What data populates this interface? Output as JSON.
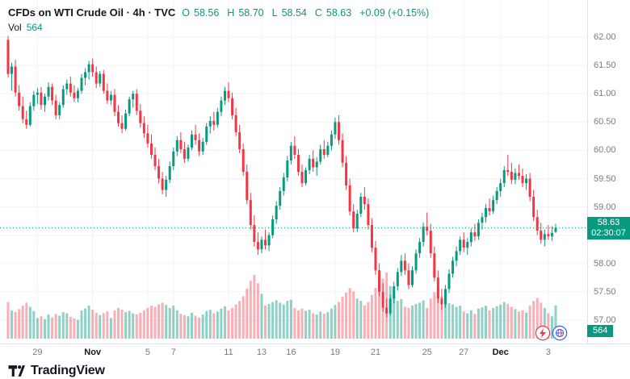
{
  "header": {
    "symbol_title": "CFDs on WTI Crude Oil · 4h · TVC",
    "ohlc": {
      "o_label": "O",
      "o": "58.56",
      "h_label": "H",
      "h": "58.70",
      "l_label": "L",
      "l": "58.54",
      "c_label": "C",
      "c": "58.63",
      "change": "+0.09 (+0.15%)"
    },
    "vol_label": "Vol",
    "vol_value": "564"
  },
  "price_axis": {
    "ticks": [
      {
        "v": 62.0,
        "l": "62.00"
      },
      {
        "v": 61.5,
        "l": "61.50"
      },
      {
        "v": 61.0,
        "l": "61.00"
      },
      {
        "v": 60.5,
        "l": "60.50"
      },
      {
        "v": 60.0,
        "l": "60.00"
      },
      {
        "v": 59.5,
        "l": "59.50"
      },
      {
        "v": 59.0,
        "l": "59.00"
      },
      {
        "v": 58.5,
        "l": ""
      },
      {
        "v": 58.0,
        "l": "58.00"
      },
      {
        "v": 57.5,
        "l": "57.50"
      },
      {
        "v": 57.0,
        "l": "57.00"
      }
    ],
    "last_price_badge": {
      "price": "58.63",
      "countdown": "02:30:07"
    },
    "volume_badge": "564"
  },
  "time_axis": {
    "labels": [
      {
        "i": 8,
        "t": "29"
      },
      {
        "i": 23,
        "t": "Nov",
        "month": true
      },
      {
        "i": 38,
        "t": "5"
      },
      {
        "i": 45,
        "t": "7"
      },
      {
        "i": 60,
        "t": "11"
      },
      {
        "i": 69,
        "t": "13"
      },
      {
        "i": 77,
        "t": "16"
      },
      {
        "i": 89,
        "t": "19"
      },
      {
        "i": 100,
        "t": "21"
      },
      {
        "i": 114,
        "t": "25"
      },
      {
        "i": 124,
        "t": "27"
      },
      {
        "i": 134,
        "t": "Dec",
        "month": true
      },
      {
        "i": 147,
        "t": "3"
      }
    ]
  },
  "footer": {
    "brand": "TradingView"
  },
  "icons": {
    "bolt": "quick-trade",
    "globe": "community-reactions"
  },
  "colors": {
    "up": "#089981",
    "down": "#f23645",
    "vol_up": "rgba(8,153,129,0.45)",
    "vol_down": "rgba(242,54,69,0.40)",
    "grid": "#f0f3fa",
    "axis_text": "#787b86",
    "title_text": "#131722",
    "badge_bg": "#089981"
  },
  "chart_data": {
    "type": "candlestick",
    "title": "CFDs on WTI Crude Oil",
    "interval": "4h",
    "exchange": "TVC",
    "last": {
      "open": 58.56,
      "high": 58.7,
      "low": 58.54,
      "close": 58.63,
      "volume": 564,
      "change": "+0.09 (+0.15%)"
    },
    "ylim": [
      56.8,
      62.3
    ],
    "volume_max": 1120,
    "x_range_labels": [
      "29",
      "Nov",
      "5",
      "7",
      "11",
      "13",
      "16",
      "19",
      "21",
      "25",
      "27",
      "Dec",
      "3"
    ],
    "candles_format": [
      "open",
      "high",
      "low",
      "close",
      "volume"
    ],
    "candles": [
      [
        61.95,
        62.02,
        61.28,
        61.35,
        620
      ],
      [
        61.35,
        61.55,
        61.05,
        61.48,
        480
      ],
      [
        61.48,
        61.6,
        60.95,
        61.02,
        450
      ],
      [
        61.02,
        61.15,
        60.7,
        60.78,
        500
      ],
      [
        60.78,
        60.95,
        60.48,
        60.55,
        560
      ],
      [
        60.55,
        60.7,
        60.38,
        60.45,
        610
      ],
      [
        60.45,
        60.85,
        60.42,
        60.78,
        540
      ],
      [
        60.78,
        61.05,
        60.7,
        60.98,
        470
      ],
      [
        60.98,
        61.1,
        60.82,
        61.02,
        350
      ],
      [
        61.02,
        61.12,
        60.72,
        60.8,
        380
      ],
      [
        60.8,
        61.0,
        60.68,
        60.95,
        330
      ],
      [
        60.95,
        61.2,
        60.88,
        61.12,
        410
      ],
      [
        61.12,
        61.18,
        60.8,
        60.88,
        360
      ],
      [
        60.88,
        60.98,
        60.55,
        60.62,
        420
      ],
      [
        60.62,
        60.85,
        60.55,
        60.8,
        390
      ],
      [
        60.8,
        61.15,
        60.75,
        61.08,
        450
      ],
      [
        61.08,
        61.25,
        60.98,
        61.18,
        430
      ],
      [
        61.18,
        61.3,
        60.95,
        61.02,
        370
      ],
      [
        61.02,
        61.15,
        60.85,
        60.92,
        340
      ],
      [
        60.92,
        61.1,
        60.85,
        61.05,
        320
      ],
      [
        61.05,
        61.35,
        61.0,
        61.28,
        480
      ],
      [
        61.28,
        61.45,
        61.15,
        61.38,
        510
      ],
      [
        61.38,
        61.58,
        61.25,
        61.52,
        560
      ],
      [
        61.52,
        61.62,
        61.3,
        61.38,
        490
      ],
      [
        61.38,
        61.48,
        61.1,
        61.18,
        440
      ],
      [
        61.18,
        61.4,
        61.12,
        61.35,
        400
      ],
      [
        61.35,
        61.42,
        61.0,
        61.05,
        430
      ],
      [
        61.05,
        61.18,
        60.82,
        60.88,
        460
      ],
      [
        60.88,
        61.05,
        60.8,
        60.98,
        350
      ],
      [
        60.98,
        61.08,
        60.6,
        60.68,
        480
      ],
      [
        60.68,
        60.8,
        60.42,
        60.48,
        520
      ],
      [
        60.48,
        60.62,
        60.3,
        60.38,
        490
      ],
      [
        60.38,
        60.72,
        60.35,
        60.65,
        450
      ],
      [
        60.65,
        60.95,
        60.6,
        60.9,
        470
      ],
      [
        60.9,
        61.05,
        60.75,
        61.0,
        430
      ],
      [
        61.0,
        61.08,
        60.62,
        60.7,
        410
      ],
      [
        60.7,
        60.82,
        60.4,
        60.48,
        440
      ],
      [
        60.48,
        60.6,
        60.22,
        60.3,
        480
      ],
      [
        60.3,
        60.45,
        60.05,
        60.12,
        520
      ],
      [
        60.12,
        60.28,
        59.85,
        59.92,
        560
      ],
      [
        59.92,
        60.05,
        59.65,
        59.72,
        540
      ],
      [
        59.72,
        59.85,
        59.42,
        59.5,
        580
      ],
      [
        59.5,
        59.62,
        59.22,
        59.3,
        610
      ],
      [
        59.3,
        59.55,
        59.18,
        59.48,
        570
      ],
      [
        59.48,
        59.8,
        59.42,
        59.72,
        520
      ],
      [
        59.72,
        60.05,
        59.65,
        59.98,
        560
      ],
      [
        59.98,
        60.25,
        59.9,
        60.18,
        480
      ],
      [
        60.18,
        60.32,
        59.95,
        60.02,
        420
      ],
      [
        60.02,
        60.15,
        59.78,
        59.85,
        400
      ],
      [
        59.85,
        60.1,
        59.8,
        60.05,
        380
      ],
      [
        60.05,
        60.35,
        60.0,
        60.28,
        440
      ],
      [
        60.28,
        60.45,
        60.1,
        60.18,
        390
      ],
      [
        60.18,
        60.3,
        59.9,
        59.98,
        360
      ],
      [
        59.98,
        60.22,
        59.92,
        60.15,
        410
      ],
      [
        60.15,
        60.48,
        60.1,
        60.42,
        470
      ],
      [
        60.42,
        60.6,
        60.3,
        60.52,
        490
      ],
      [
        60.52,
        60.68,
        60.35,
        60.45,
        430
      ],
      [
        60.45,
        60.75,
        60.4,
        60.68,
        460
      ],
      [
        60.68,
        60.95,
        60.6,
        60.88,
        510
      ],
      [
        60.88,
        61.12,
        60.8,
        61.05,
        550
      ],
      [
        61.05,
        61.2,
        60.85,
        60.92,
        480
      ],
      [
        60.92,
        61.02,
        60.55,
        60.62,
        520
      ],
      [
        60.62,
        60.75,
        60.25,
        60.32,
        580
      ],
      [
        60.32,
        60.45,
        59.95,
        60.02,
        640
      ],
      [
        60.02,
        60.12,
        59.55,
        59.62,
        720
      ],
      [
        59.62,
        59.75,
        59.05,
        59.12,
        850
      ],
      [
        59.12,
        59.25,
        58.6,
        58.68,
        980
      ],
      [
        58.68,
        58.85,
        58.3,
        58.38,
        1080
      ],
      [
        58.38,
        58.55,
        58.15,
        58.25,
        940
      ],
      [
        58.25,
        58.48,
        58.18,
        58.42,
        760
      ],
      [
        58.42,
        58.6,
        58.25,
        58.32,
        560
      ],
      [
        58.32,
        58.55,
        58.22,
        58.5,
        590
      ],
      [
        58.5,
        58.85,
        58.45,
        58.78,
        620
      ],
      [
        58.78,
        59.1,
        58.7,
        59.02,
        650
      ],
      [
        59.02,
        59.35,
        58.95,
        59.28,
        610
      ],
      [
        59.28,
        59.6,
        59.2,
        59.52,
        580
      ],
      [
        59.52,
        59.9,
        59.45,
        59.82,
        640
      ],
      [
        59.82,
        60.15,
        59.75,
        60.08,
        660
      ],
      [
        60.08,
        60.25,
        59.85,
        59.92,
        520
      ],
      [
        59.92,
        60.02,
        59.55,
        59.62,
        480
      ],
      [
        59.62,
        59.75,
        59.35,
        59.42,
        510
      ],
      [
        59.42,
        59.7,
        59.38,
        59.65,
        470
      ],
      [
        59.65,
        59.92,
        59.58,
        59.85,
        490
      ],
      [
        59.85,
        60.0,
        59.62,
        59.7,
        430
      ],
      [
        59.7,
        59.88,
        59.55,
        59.8,
        410
      ],
      [
        59.8,
        60.1,
        59.75,
        60.02,
        460
      ],
      [
        60.02,
        60.18,
        59.85,
        59.92,
        420
      ],
      [
        59.92,
        60.15,
        59.88,
        60.08,
        450
      ],
      [
        60.08,
        60.35,
        60.0,
        60.28,
        510
      ],
      [
        60.28,
        60.58,
        60.2,
        60.5,
        570
      ],
      [
        60.5,
        60.62,
        60.1,
        60.18,
        620
      ],
      [
        60.18,
        60.3,
        59.7,
        59.78,
        710
      ],
      [
        59.78,
        59.9,
        59.3,
        59.38,
        780
      ],
      [
        59.38,
        59.5,
        58.85,
        58.92,
        860
      ],
      [
        58.92,
        59.05,
        58.55,
        58.62,
        800
      ],
      [
        58.62,
        58.95,
        58.55,
        58.88,
        680
      ],
      [
        58.88,
        59.25,
        58.82,
        59.18,
        640
      ],
      [
        59.18,
        59.35,
        58.95,
        59.05,
        560
      ],
      [
        59.05,
        59.15,
        58.6,
        58.68,
        620
      ],
      [
        58.68,
        58.8,
        58.2,
        58.28,
        740
      ],
      [
        58.28,
        58.4,
        57.8,
        57.88,
        860
      ],
      [
        57.88,
        58.0,
        57.42,
        57.5,
        950
      ],
      [
        57.5,
        57.65,
        57.15,
        57.22,
        1020
      ],
      [
        57.22,
        57.38,
        57.05,
        57.12,
        1120
      ],
      [
        57.12,
        57.45,
        57.08,
        57.38,
        890
      ],
      [
        57.38,
        57.68,
        57.3,
        57.6,
        760
      ],
      [
        57.6,
        57.92,
        57.52,
        57.85,
        640
      ],
      [
        57.85,
        58.15,
        57.78,
        58.05,
        670
      ],
      [
        58.05,
        58.18,
        57.8,
        57.88,
        540
      ],
      [
        57.88,
        58.0,
        57.55,
        57.62,
        520
      ],
      [
        57.62,
        57.95,
        57.58,
        57.88,
        560
      ],
      [
        57.88,
        58.25,
        57.82,
        58.18,
        590
      ],
      [
        58.18,
        58.45,
        58.1,
        58.38,
        610
      ],
      [
        58.38,
        58.72,
        58.3,
        58.65,
        650
      ],
      [
        58.65,
        58.9,
        58.5,
        58.58,
        520
      ],
      [
        58.58,
        58.7,
        58.1,
        58.18,
        680
      ],
      [
        58.18,
        58.3,
        57.68,
        57.75,
        790
      ],
      [
        57.75,
        57.88,
        57.3,
        57.38,
        850
      ],
      [
        57.38,
        57.55,
        57.18,
        57.28,
        720
      ],
      [
        57.28,
        57.62,
        57.22,
        57.55,
        640
      ],
      [
        57.55,
        57.9,
        57.48,
        57.82,
        600
      ],
      [
        57.82,
        58.12,
        57.75,
        58.05,
        580
      ],
      [
        58.05,
        58.3,
        57.95,
        58.22,
        540
      ],
      [
        58.22,
        58.48,
        58.15,
        58.42,
        560
      ],
      [
        58.42,
        58.55,
        58.2,
        58.28,
        460
      ],
      [
        58.28,
        58.45,
        58.15,
        58.38,
        430
      ],
      [
        58.38,
        58.62,
        58.3,
        58.55,
        480
      ],
      [
        58.55,
        58.7,
        58.4,
        58.48,
        420
      ],
      [
        58.48,
        58.78,
        58.42,
        58.72,
        510
      ],
      [
        58.72,
        58.9,
        58.6,
        58.82,
        530
      ],
      [
        58.82,
        59.05,
        58.72,
        58.98,
        560
      ],
      [
        58.98,
        59.15,
        58.85,
        58.92,
        480
      ],
      [
        58.92,
        59.2,
        58.88,
        59.12,
        520
      ],
      [
        59.12,
        59.35,
        59.05,
        59.28,
        550
      ],
      [
        59.28,
        59.5,
        59.18,
        59.42,
        580
      ],
      [
        59.42,
        59.72,
        59.35,
        59.65,
        620
      ],
      [
        59.65,
        59.92,
        59.55,
        59.62,
        590
      ],
      [
        59.62,
        59.78,
        59.4,
        59.48,
        540
      ],
      [
        59.48,
        59.68,
        59.4,
        59.6,
        500
      ],
      [
        59.6,
        59.75,
        59.48,
        59.55,
        460
      ],
      [
        59.55,
        59.68,
        59.35,
        59.42,
        480
      ],
      [
        59.42,
        59.58,
        59.3,
        59.5,
        440
      ],
      [
        59.5,
        59.6,
        59.1,
        59.18,
        560
      ],
      [
        59.18,
        59.3,
        58.75,
        58.82,
        640
      ],
      [
        58.82,
        58.95,
        58.5,
        58.58,
        690
      ],
      [
        58.58,
        58.72,
        58.35,
        58.42,
        610
      ],
      [
        58.42,
        58.6,
        58.3,
        58.52,
        520
      ],
      [
        58.52,
        58.68,
        58.42,
        58.48,
        430
      ],
      [
        58.48,
        58.66,
        58.4,
        58.54,
        380
      ],
      [
        58.56,
        58.7,
        58.54,
        58.63,
        564
      ]
    ]
  }
}
